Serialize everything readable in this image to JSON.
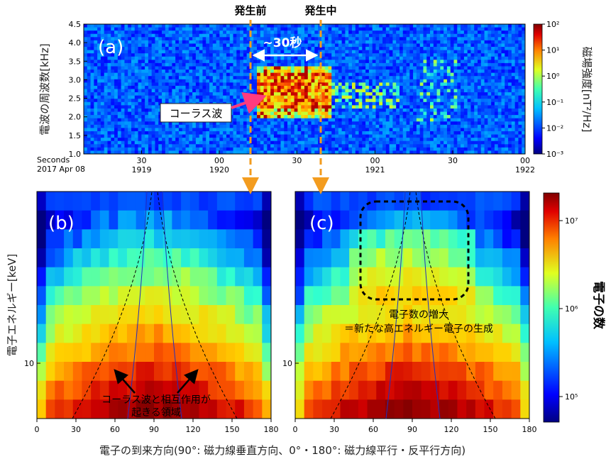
{
  "chart_data": [
    {
      "type": "heatmap",
      "panel": "(a)",
      "header_before": "発生前",
      "header_during": "発生中",
      "duration_label": "~30秒",
      "wave_label": "コーラス波",
      "ylabel": "電波の周波数[kHz]",
      "ytick_labels": [
        "4.5",
        "4.0",
        "3.5",
        "3.0",
        "2.5",
        "2.0",
        "1.5",
        "1.0"
      ],
      "ylim": [
        1.0,
        4.5
      ],
      "x_row_label": "Seconds",
      "date_label": "2017 Apr 08",
      "x_seconds_labels": [
        "30",
        "00",
        "30",
        "00",
        "30",
        "00"
      ],
      "x_minute_labels": [
        "1919",
        "1920",
        "1921",
        "1922"
      ],
      "colorbar_label": "磁場強度[nT²/Hz]",
      "colorbar_ticks": [
        "10²",
        "10¹",
        "10⁰",
        "10⁻¹",
        "10⁻²",
        "10⁻³"
      ],
      "colorbar_range": [
        0.001,
        100
      ],
      "colorbar_scale": "log"
    },
    {
      "type": "heatmap",
      "panel": "(b)",
      "annotation": [
        "コーラス波と相互作用が",
        "起きる領域"
      ],
      "ylabel": "電子エネルギー[keV]",
      "ytick_labels": [
        "10"
      ],
      "y_scale": "log",
      "xlabel": "電子の到来方向(90°: 磁力線垂直方向、0°・180°: 磁力線平行・反平行方向)",
      "xticks": [
        0,
        30,
        60,
        90,
        120,
        150,
        180
      ],
      "xlim": [
        0,
        180
      ]
    },
    {
      "type": "heatmap",
      "panel": "(c)",
      "annotation": [
        "電子数の増大",
        "＝新たな高エネルギー電子の生成"
      ],
      "ytick_labels": [
        "10"
      ],
      "y_scale": "log",
      "xticks": [
        0,
        30,
        60,
        90,
        120,
        150,
        180
      ],
      "xlim": [
        0,
        180
      ],
      "colorbar_label": "電子の数",
      "colorbar_ticks": [
        "10⁷",
        "10⁶",
        "10⁵"
      ],
      "colorbar_scale": "log"
    }
  ],
  "colors": {
    "arrow_orange": "#f39c1f",
    "wave_pink": "#ff3b7f",
    "colormap": [
      "#000080",
      "#0000ff",
      "#00a0ff",
      "#30ffd0",
      "#c8ff30",
      "#ffd000",
      "#ff6000",
      "#d00000",
      "#800000"
    ]
  }
}
